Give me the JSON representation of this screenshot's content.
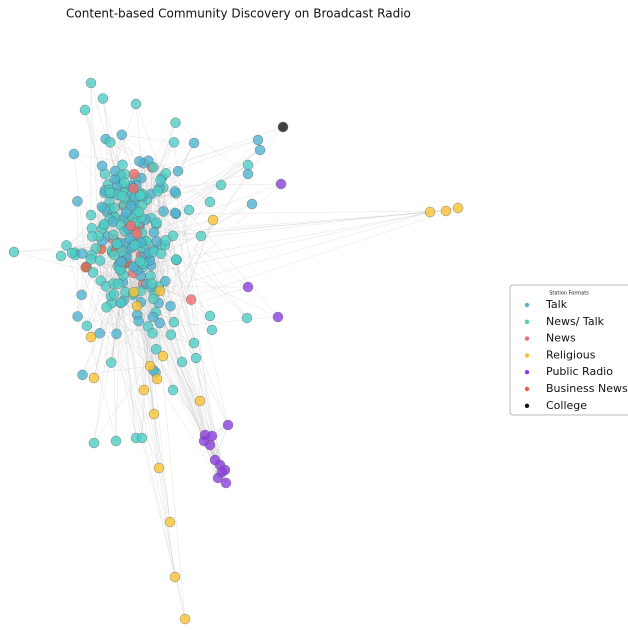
{
  "chart_data": {
    "type": "network",
    "title": "Content-based Community Discovery on Broadcast Radio",
    "legend_title": "Station Formats",
    "legend": "right",
    "series": [
      {
        "name": "Talk",
        "color": "#4fb3d1"
      },
      {
        "name": "News/ Talk",
        "color": "#4ecdc4"
      },
      {
        "name": "News",
        "color": "#f26d6d"
      },
      {
        "name": "Religious",
        "color": "#f7c232"
      },
      {
        "name": "Public Radio",
        "color": "#8a3fe0"
      },
      {
        "name": "Business News",
        "color": "#e8603c"
      },
      {
        "name": "College",
        "color": "#111111"
      }
    ]
  }
}
